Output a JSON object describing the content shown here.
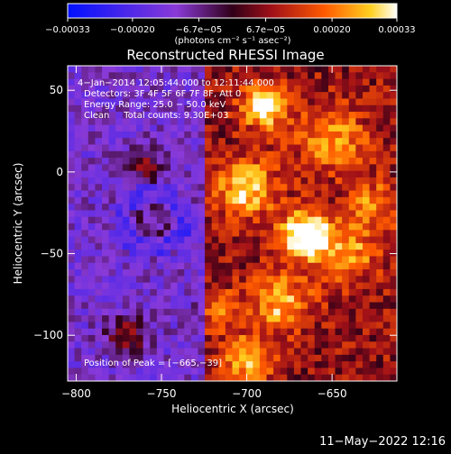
{
  "chart_data": {
    "type": "heatmap",
    "title": "Reconstructed RHESSI Image",
    "xlabel": "Heliocentric X (arcsec)",
    "ylabel": "Heliocentric Y (arcsec)",
    "xlim": [
      -805,
      -612
    ],
    "ylim": [
      -128,
      65
    ],
    "xticks": [
      -800,
      -750,
      -700,
      -650
    ],
    "xtick_labels": [
      "−800",
      "−750",
      "−700",
      "−650"
    ],
    "yticks": [
      50,
      0,
      -50,
      -100
    ],
    "ytick_labels": [
      "50",
      "0",
      "−50",
      "−100"
    ],
    "colorbar": {
      "label": "(photons cm⁻² s⁻¹ asec⁻²)",
      "range": [
        -0.00033,
        0.00033
      ],
      "ticks": [
        -0.00033,
        -0.0002,
        -6.7e-05,
        6.7e-05,
        0.0002,
        0.00033
      ],
      "tick_labels": [
        "−0.00033",
        "−0.00020",
        "−6.7e−05",
        "6.7e−05",
        "0.00020",
        "0.00033"
      ]
    },
    "annotations": [
      "4−Jan−2014 12:05:44.000 to 12:11:44.000",
      "Detectors: 3F 4F 5F 6F 7F 8F, Att 0",
      "Energy Range: 25.0 − 50.0 keV",
      "Clean     Total counts: 9.30E+03",
      "Position of Peak = [−665,−39]"
    ],
    "peak": {
      "x": -665,
      "y": -39
    },
    "grid": false
  },
  "footer": {
    "date": "11−May−2022 12:16"
  }
}
